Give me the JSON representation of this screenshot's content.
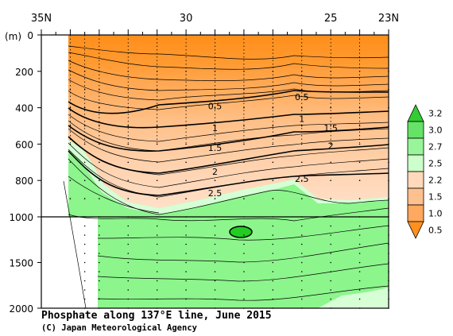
{
  "chart_data": {
    "type": "contour",
    "title": "Phosphate along 137°E line, June 2015",
    "credit": "(C) Japan Meteorological Agency",
    "xaxis": {
      "tick_labels": [
        "35N",
        "30",
        "25",
        "23N"
      ],
      "tick_values": [
        35,
        30,
        25,
        23
      ],
      "range": [
        35,
        23
      ]
    },
    "yaxis": {
      "unit": "(m)",
      "tick_labels": [
        "0",
        "200",
        "400",
        "600",
        "800",
        "1000",
        "1500",
        "2000"
      ],
      "tick_values": [
        0,
        200,
        400,
        600,
        800,
        1000,
        1500,
        2000
      ],
      "upper_range": [
        0,
        1000
      ],
      "lower_range": [
        1000,
        2000
      ]
    },
    "colorbar": {
      "tick_labels": [
        "3.2",
        "3.0",
        "2.7",
        "2.5",
        "2.2",
        "1.5",
        "1.0",
        "0.5"
      ],
      "levels": [
        3.2,
        3.0,
        2.7,
        2.5,
        2.2,
        1.5,
        1.0,
        0.5
      ],
      "colors": [
        "#33cc33",
        "#66e266",
        "#99f599",
        "#ccffcc",
        "#ffd9bb",
        "#ffc090",
        "#ffa860",
        "#ff9020"
      ]
    },
    "contour_labels": [
      {
        "text": "0.5",
        "lat": 29.0,
        "depth": 390
      },
      {
        "text": "0.5",
        "lat": 26.0,
        "depth": 340
      },
      {
        "text": "1",
        "lat": 29.0,
        "depth": 510
      },
      {
        "text": "1",
        "lat": 26.0,
        "depth": 460
      },
      {
        "text": "1.5",
        "lat": 29.0,
        "depth": 620
      },
      {
        "text": "1.5",
        "lat": 25.0,
        "depth": 510
      },
      {
        "text": "2",
        "lat": 29.0,
        "depth": 750
      },
      {
        "text": "2",
        "lat": 25.0,
        "depth": 610
      },
      {
        "text": "2.5",
        "lat": 29.0,
        "depth": 870
      },
      {
        "text": "2.5",
        "lat": 26.0,
        "depth": 790
      }
    ],
    "station_lats": [
      34.0,
      33.5,
      33.0,
      32.0,
      31.0,
      30.0,
      29.0,
      28.0,
      27.0,
      26.0,
      25.0,
      24.0,
      23.0
    ]
  },
  "colors": {
    "orange": "#ff9422",
    "green": "#8cf58c",
    "light_green": "#d4ffd4",
    "peach": "#ffd2b0"
  }
}
